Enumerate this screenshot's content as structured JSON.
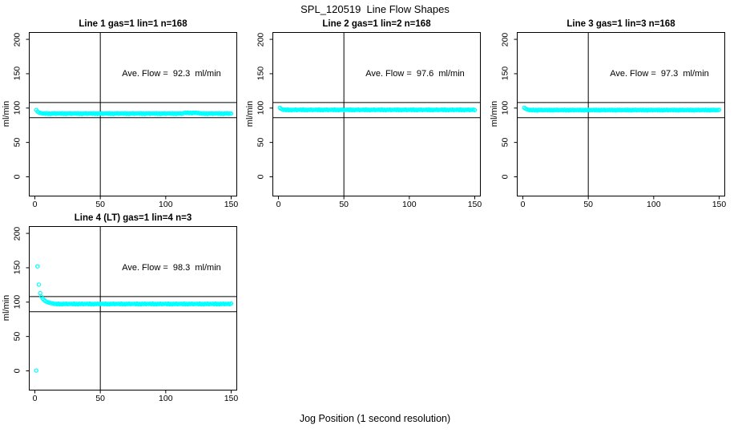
{
  "title": "SPL_120519  Line Flow Shapes",
  "x_axis_title": "Jog Position (1 second resolution)",
  "colors": {
    "point": "#00ffff",
    "axis": "#000000",
    "text": "#000000",
    "background": "#ffffff"
  },
  "chart_data": [
    {
      "type": "scatter",
      "title": "Line 1 gas=1 lin=1 n=168",
      "annotation": "Ave. Flow =  92.3  ml/min",
      "ave_flow_ml_min": 92.3,
      "ylabel": "ml/min",
      "x_ticks": [
        0,
        50,
        100,
        150
      ],
      "y_ticks": [
        0,
        50,
        100,
        150,
        200
      ],
      "xlim": [
        -4.3,
        154.3
      ],
      "ylim": [
        -28,
        210
      ],
      "ref_lines": {
        "h": [
          86,
          108
        ],
        "v": 50
      },
      "x_start": 1,
      "x_step": 1,
      "y": [
        97.3,
        95,
        93.8,
        93,
        92.6,
        92,
        92.4,
        91.7,
        92.6,
        91.5,
        92.2,
        91.4,
        92.3,
        91.9,
        92.5,
        91.6,
        92.1,
        92,
        92.4,
        91.7,
        92.6,
        91.5,
        92.2,
        91.4,
        92.3,
        91.9,
        92.5,
        91.6,
        92.1,
        92,
        92.4,
        91.7,
        92.6,
        91.5,
        92.2,
        91.4,
        92.3,
        91.9,
        92.5,
        91.6,
        92.1,
        92,
        92.4,
        91.7,
        92.6,
        91.5,
        92.2,
        91.4,
        92.3,
        91.9,
        92.5,
        91.6,
        92.1,
        92,
        92.4,
        91.7,
        92.6,
        91.5,
        92.2,
        91.4,
        92.3,
        91.9,
        92.5,
        91.6,
        92.1,
        92,
        92.4,
        91.7,
        92.6,
        91.5,
        92.2,
        91.4,
        92.3,
        91.9,
        92.5,
        91.6,
        92.1,
        92,
        92.4,
        91.7,
        92.6,
        91.5,
        92.2,
        91.4,
        92.3,
        91.9,
        92.5,
        91.6,
        92.1,
        92,
        92.4,
        91.7,
        92.6,
        91.5,
        92.2,
        91.4,
        92.3,
        91.9,
        92.5,
        91.6,
        92.1,
        92,
        92.4,
        91.7,
        92.6,
        91.5,
        92.2,
        91.4,
        92.3,
        91.9,
        92.5,
        91.6,
        92.1,
        93,
        93.4,
        92.7,
        93.6,
        92.5,
        93.2,
        92.4,
        93.3,
        92.9,
        93.5,
        92.6,
        93.1,
        92,
        92.4,
        91.7,
        92.6,
        91.5,
        92.2,
        91.4,
        92.3,
        91.9,
        92.5,
        91.6,
        92.1,
        92,
        92.4,
        91.7,
        92.6,
        91.5,
        92.2,
        91.4,
        92.3,
        91.9,
        92.5,
        91.6,
        92.1,
        92
      ]
    },
    {
      "type": "scatter",
      "title": "Line 2 gas=1 lin=2 n=168",
      "annotation": "Ave. Flow =  97.6  ml/min",
      "ave_flow_ml_min": 97.6,
      "ylabel": "ml/min",
      "x_ticks": [
        0,
        50,
        100,
        150
      ],
      "y_ticks": [
        0,
        50,
        100,
        150,
        200
      ],
      "xlim": [
        -4.3,
        154.3
      ],
      "ylim": [
        -28,
        210
      ],
      "ref_lines": {
        "h": [
          86,
          108
        ],
        "v": 50
      },
      "x_start": 1,
      "x_step": 1,
      "y": [
        100.3,
        98.9,
        98,
        97.4,
        97.8,
        97.1,
        98,
        96.9,
        97.6,
        96.8,
        97.7,
        97.3,
        97.9,
        97,
        97.5,
        97.4,
        97.8,
        97.1,
        98,
        96.9,
        97.6,
        96.8,
        97.7,
        97.3,
        97.9,
        97,
        97.5,
        97.4,
        97.8,
        97.1,
        98,
        96.9,
        97.6,
        96.8,
        97.7,
        97.3,
        97.9,
        97,
        97.5,
        97.4,
        97.8,
        97.1,
        98,
        96.9,
        97.6,
        96.8,
        97.7,
        97.3,
        97.9,
        97,
        97.5,
        97.4,
        97.8,
        97.1,
        98,
        96.9,
        97.6,
        96.8,
        97.7,
        97.3,
        97.9,
        97,
        97.5,
        97.4,
        97.8,
        97.1,
        98,
        96.9,
        97.6,
        96.8,
        97.7,
        97.3,
        97.9,
        97,
        97.5,
        97.4,
        97.8,
        97.1,
        98,
        96.9,
        97.6,
        96.8,
        97.7,
        97.3,
        97.9,
        97,
        97.5,
        97.4,
        97.8,
        97.1,
        98,
        96.9,
        97.6,
        96.8,
        97.7,
        97.3,
        97.9,
        97,
        97.5,
        97.4,
        97.8,
        97.1,
        98,
        96.9,
        97.6,
        96.8,
        97.7,
        97.3,
        97.9,
        97,
        97.5,
        97.4,
        97.8,
        97.1,
        98,
        96.9,
        97.6,
        96.8,
        97.7,
        97.3,
        97.9,
        97,
        97.5,
        97.4,
        97.8,
        97.1,
        98,
        96.9,
        97.6,
        96.8,
        97.7,
        97.3,
        97.9,
        97,
        97.5,
        97.4,
        97.8,
        97.1,
        98,
        96.9,
        97.6,
        96.8,
        97.7,
        97.3,
        97.9,
        97,
        97.5,
        97.4,
        97.8,
        97.1
      ]
    },
    {
      "type": "scatter",
      "title": "Line 3 gas=1 lin=3 n=168",
      "annotation": "Ave. Flow =  97.3  ml/min",
      "ave_flow_ml_min": 97.3,
      "ylabel": "ml/min",
      "x_ticks": [
        0,
        50,
        100,
        150
      ],
      "y_ticks": [
        0,
        50,
        100,
        150,
        200
      ],
      "xlim": [
        -4.3,
        154.3
      ],
      "ylim": [
        -28,
        210
      ],
      "ref_lines": {
        "h": [
          86,
          108
        ],
        "v": 50
      },
      "x_start": 1,
      "x_step": 1,
      "y": [
        100.6,
        99.2,
        98.3,
        97.7,
        97.1,
        97.5,
        96.8,
        97.7,
        96.6,
        97.3,
        96.5,
        97.4,
        97,
        97.6,
        96.7,
        97.2,
        97.1,
        97.5,
        96.8,
        97.7,
        96.6,
        97.3,
        96.5,
        97.4,
        97,
        97.6,
        96.7,
        97.2,
        97.1,
        97.5,
        96.8,
        97.7,
        96.6,
        97.3,
        96.5,
        97.4,
        97,
        97.6,
        96.7,
        97.2,
        97.1,
        97.5,
        96.8,
        97.7,
        96.6,
        97.3,
        96.5,
        97.4,
        97,
        97.6,
        96.7,
        97.2,
        97.1,
        97.5,
        96.8,
        97.7,
        96.6,
        97.3,
        96.5,
        97.4,
        97,
        97.6,
        96.7,
        97.2,
        97.1,
        97.5,
        96.8,
        97.7,
        96.6,
        97.3,
        96.5,
        97.4,
        97,
        97.6,
        96.7,
        97.2,
        97.1,
        97.5,
        96.8,
        97.7,
        96.6,
        97.3,
        96.5,
        97.4,
        97,
        97.6,
        96.7,
        97.2,
        97.1,
        97.5,
        96.8,
        97.7,
        96.6,
        97.3,
        96.5,
        97.4,
        97,
        97.6,
        96.7,
        97.2,
        97.1,
        97.5,
        96.8,
        97.7,
        96.6,
        97.3,
        96.5,
        97.4,
        97,
        97.6,
        96.7,
        97.2,
        97.1,
        97.5,
        96.8,
        97.7,
        96.6,
        97.3,
        96.5,
        97.4,
        97,
        97.6,
        96.7,
        97.2,
        97.1,
        97.5,
        96.8,
        97.7,
        96.6,
        97.3,
        96.5,
        97.4,
        97,
        97.6,
        96.7,
        97.2,
        97.1,
        97.5,
        96.8,
        97.7,
        96.6,
        97.3,
        96.5,
        97.4,
        97,
        97.6,
        96.7,
        97.2,
        97.1,
        97.5
      ]
    },
    {
      "type": "scatter",
      "title": "Line 4 (LT) gas=1 lin=4 n=3",
      "annotation": "Ave. Flow =  98.3  ml/min",
      "ave_flow_ml_min": 98.3,
      "ylabel": "ml/min",
      "x_ticks": [
        0,
        50,
        100,
        150
      ],
      "y_ticks": [
        0,
        50,
        100,
        150,
        200
      ],
      "xlim": [
        -4.3,
        154.3
      ],
      "ylim": [
        -28,
        210
      ],
      "ref_lines": {
        "h": [
          86,
          108
        ],
        "v": 50
      },
      "x_start": 1,
      "x_step": 1,
      "y": [
        0.5,
        152,
        125.5,
        113,
        108,
        105,
        103,
        101.5,
        100.5,
        99.8,
        99.2,
        98.7,
        98.3,
        98,
        97.3,
        97.7,
        97,
        97.9,
        96.8,
        97.5,
        96.7,
        97.6,
        97.2,
        97.8,
        96.9,
        97.4,
        97.3,
        97.7,
        97,
        97.9,
        96.8,
        97.5,
        96.7,
        97.6,
        97.2,
        97.8,
        96.9,
        97.4,
        97.3,
        97.7,
        97,
        97.9,
        96.8,
        97.5,
        96.7,
        97.6,
        97.2,
        97.8,
        96.9,
        97.4,
        97.3,
        97.7,
        97,
        97.9,
        96.8,
        97.5,
        96.7,
        97.6,
        97.2,
        97.8,
        96.9,
        97.4,
        97.3,
        97.7,
        97,
        97.9,
        96.8,
        97.5,
        96.7,
        97.6,
        97.2,
        97.8,
        96.9,
        97.4,
        97.3,
        97.7,
        97,
        97.9,
        96.8,
        97.5,
        96.7,
        97.6,
        97.2,
        97.8,
        96.9,
        97.4,
        97.3,
        97.7,
        97,
        97.9,
        96.8,
        97.5,
        96.7,
        97.6,
        97.2,
        97.8,
        96.9,
        97.4,
        97.3,
        97.7,
        97,
        97.9,
        96.8,
        97.5,
        96.7,
        97.6,
        97.2,
        97.8,
        96.9,
        97.4,
        97.3,
        97.7,
        97,
        97.9,
        96.8,
        97.5,
        96.7,
        97.6,
        97.2,
        97.8,
        96.9,
        97.4,
        97.3,
        97.7,
        97,
        97.9,
        96.8,
        97.5,
        96.7,
        97.6,
        97.2,
        97.8,
        96.9,
        97.4,
        97.3,
        97.7,
        97,
        97.9,
        96.8,
        97.5,
        96.7,
        97.6,
        97.2,
        97.8,
        96.9,
        97.4,
        97.3,
        97.7,
        97,
        97.9
      ]
    }
  ]
}
